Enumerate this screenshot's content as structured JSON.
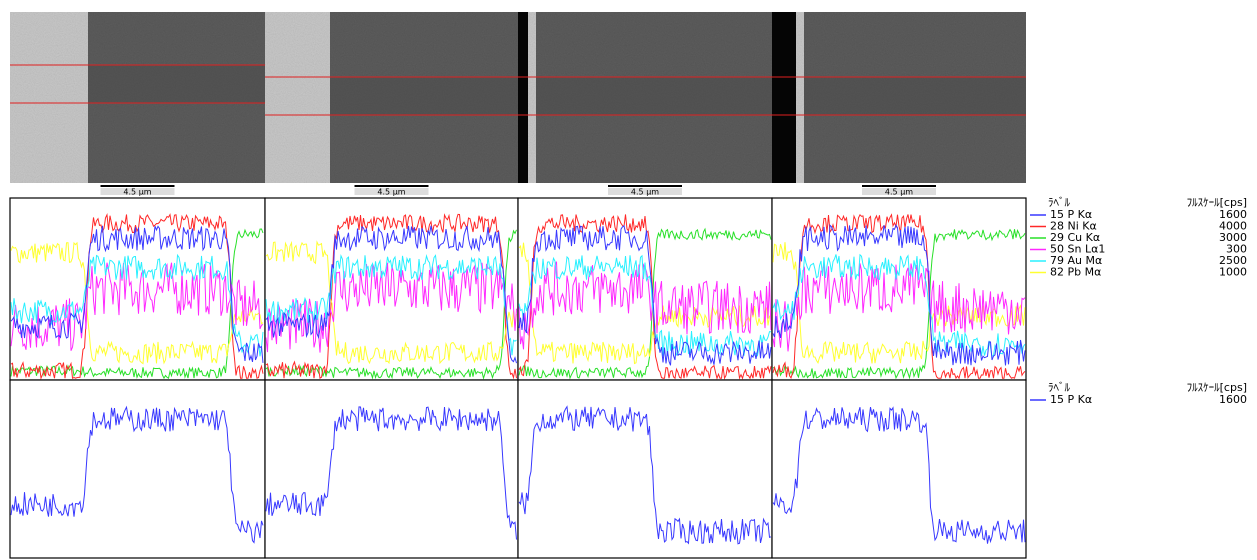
{
  "scale_bars": [
    "4.5 μm",
    "4.5 μm",
    "4.5 μm",
    "4.5 μm"
  ],
  "legend_top": {
    "label_header": "ﾗﾍﾞﾙ",
    "scale_header": "ﾌﾙｽｹｰﾙ[cps]",
    "entries": [
      {
        "label": "15 P Kα",
        "full_scale": 1600,
        "color": "#3838ff"
      },
      {
        "label": "28 Ni Kα",
        "full_scale": 4000,
        "color": "#ff2828"
      },
      {
        "label": "29 Cu Kα",
        "full_scale": 3000,
        "color": "#28e028"
      },
      {
        "label": "50 Sn Lα1",
        "full_scale": 300,
        "color": "#ff28ff"
      },
      {
        "label": "79 Au Mα",
        "full_scale": 2500,
        "color": "#28f0ff"
      },
      {
        "label": "82 Pb Mα",
        "full_scale": 1000,
        "color": "#ffff30"
      }
    ]
  },
  "legend_bottom": {
    "label_header": "ﾗﾍﾞﾙ",
    "scale_header": "ﾌﾙｽｹｰﾙ[cps]",
    "entries": [
      {
        "label": "15 P Kα",
        "full_scale": 1600,
        "color": "#3838ff"
      }
    ]
  }
}
